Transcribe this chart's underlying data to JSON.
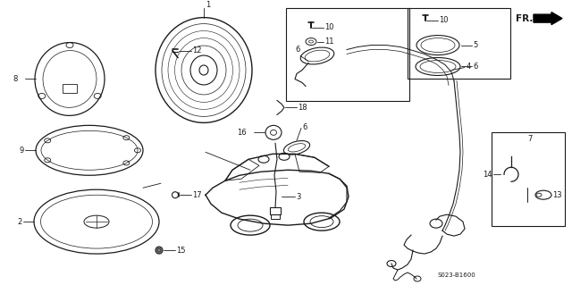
{
  "bg_color": "#ffffff",
  "fig_width": 6.4,
  "fig_height": 3.19,
  "dpi": 100,
  "col": "#1a1a1a",
  "diagram_code": "S023-B1600",
  "font_size": 6.0
}
